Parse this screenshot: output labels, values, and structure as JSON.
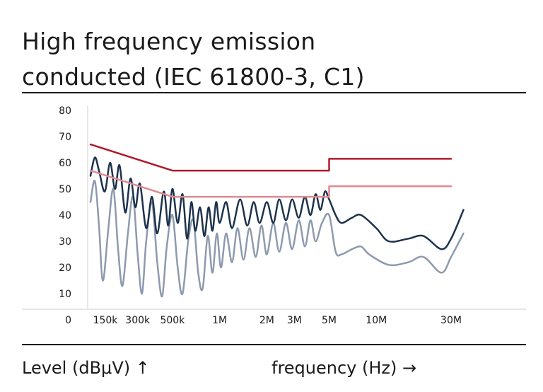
{
  "chart_data": {
    "type": "line",
    "title_line1": "High frequency emission",
    "title_line2": "conducted (IEC 61800-3, C1)",
    "xlabel": "frequency (Hz) →",
    "ylabel": "Level (dBμV) ↑",
    "x_scale": "log",
    "ylim": [
      0,
      80
    ],
    "y_ticks": [
      0,
      10,
      20,
      30,
      40,
      50,
      60,
      70,
      80
    ],
    "x_ticks": [
      {
        "label": "150k",
        "value": 150000
      },
      {
        "label": "300k",
        "value": 300000
      },
      {
        "label": "500k",
        "value": 500000
      },
      {
        "label": "1M",
        "value": 1000000
      },
      {
        "label": "2M",
        "value": 2000000
      },
      {
        "label": "3M",
        "value": 3000000
      },
      {
        "label": "5M",
        "value": 5000000
      },
      {
        "label": "10M",
        "value": 10000000
      },
      {
        "label": "30M",
        "value": 30000000
      }
    ],
    "grid": false,
    "series": [
      {
        "color": "#b0182b",
        "style": "step",
        "points": [
          [
            150000,
            67
          ],
          [
            500000,
            57
          ],
          [
            5000000,
            57
          ],
          [
            5000000,
            61.5
          ],
          [
            30000000,
            61.5
          ]
        ]
      },
      {
        "color": "#e08a90",
        "style": "step",
        "points": [
          [
            150000,
            57
          ],
          [
            500000,
            47
          ],
          [
            5000000,
            47
          ],
          [
            5000000,
            51
          ],
          [
            30000000,
            51
          ]
        ]
      },
      {
        "color": "#1d324c",
        "style": "oscillating",
        "points": [
          [
            150000,
            55
          ],
          [
            160000,
            62
          ],
          [
            170000,
            57
          ],
          [
            185000,
            49
          ],
          [
            200000,
            60
          ],
          [
            215000,
            50
          ],
          [
            230000,
            59
          ],
          [
            250000,
            41
          ],
          [
            270000,
            54
          ],
          [
            290000,
            43
          ],
          [
            310000,
            52
          ],
          [
            340000,
            35
          ],
          [
            370000,
            47
          ],
          [
            400000,
            33
          ],
          [
            440000,
            49
          ],
          [
            470000,
            36
          ],
          [
            500000,
            50
          ],
          [
            540000,
            37
          ],
          [
            580000,
            48
          ],
          [
            620000,
            31
          ],
          [
            660000,
            45
          ],
          [
            700000,
            34
          ],
          [
            750000,
            43
          ],
          [
            800000,
            32
          ],
          [
            850000,
            43
          ],
          [
            900000,
            34
          ],
          [
            950000,
            45
          ],
          [
            1000000,
            37
          ],
          [
            1100000,
            45
          ],
          [
            1200000,
            35
          ],
          [
            1350000,
            46
          ],
          [
            1500000,
            36
          ],
          [
            1650000,
            45
          ],
          [
            1800000,
            37
          ],
          [
            2000000,
            45
          ],
          [
            2200000,
            37
          ],
          [
            2400000,
            46
          ],
          [
            2650000,
            38
          ],
          [
            2900000,
            46
          ],
          [
            3200000,
            39
          ],
          [
            3500000,
            47
          ],
          [
            3800000,
            40
          ],
          [
            4100000,
            48
          ],
          [
            4400000,
            42
          ],
          [
            4700000,
            49
          ],
          [
            5000000,
            46
          ],
          [
            5500000,
            40
          ],
          [
            6000000,
            37
          ],
          [
            7000000,
            39
          ],
          [
            8000000,
            40
          ],
          [
            10000000,
            35
          ],
          [
            12000000,
            30
          ],
          [
            16000000,
            31
          ],
          [
            20000000,
            32
          ],
          [
            26000000,
            27
          ],
          [
            30000000,
            31
          ],
          [
            36000000,
            42
          ]
        ]
      },
      {
        "color": "#8d9aae",
        "style": "oscillating",
        "points": [
          [
            150000,
            45
          ],
          [
            160000,
            53
          ],
          [
            170000,
            36
          ],
          [
            180000,
            15
          ],
          [
            195000,
            35
          ],
          [
            210000,
            50
          ],
          [
            225000,
            27
          ],
          [
            240000,
            13
          ],
          [
            260000,
            33
          ],
          [
            280000,
            47
          ],
          [
            300000,
            25
          ],
          [
            320000,
            10
          ],
          [
            340000,
            30
          ],
          [
            370000,
            45
          ],
          [
            400000,
            22
          ],
          [
            430000,
            9
          ],
          [
            460000,
            28
          ],
          [
            500000,
            40
          ],
          [
            540000,
            20
          ],
          [
            580000,
            10
          ],
          [
            630000,
            30
          ],
          [
            680000,
            38
          ],
          [
            730000,
            18
          ],
          [
            780000,
            12
          ],
          [
            840000,
            32
          ],
          [
            900000,
            18
          ],
          [
            960000,
            33
          ],
          [
            1020000,
            20
          ],
          [
            1100000,
            33
          ],
          [
            1200000,
            22
          ],
          [
            1300000,
            35
          ],
          [
            1420000,
            23
          ],
          [
            1550000,
            35
          ],
          [
            1700000,
            24
          ],
          [
            1850000,
            36
          ],
          [
            2000000,
            25
          ],
          [
            2200000,
            37
          ],
          [
            2400000,
            26
          ],
          [
            2650000,
            37
          ],
          [
            2900000,
            27
          ],
          [
            3200000,
            38
          ],
          [
            3500000,
            28
          ],
          [
            3800000,
            38
          ],
          [
            4100000,
            30
          ],
          [
            4500000,
            37
          ],
          [
            5000000,
            40
          ],
          [
            5500000,
            26
          ],
          [
            6000000,
            25
          ],
          [
            7000000,
            27
          ],
          [
            8000000,
            28
          ],
          [
            9000000,
            25
          ],
          [
            12000000,
            21
          ],
          [
            16000000,
            22
          ],
          [
            20000000,
            24
          ],
          [
            26000000,
            18
          ],
          [
            30000000,
            24
          ],
          [
            36000000,
            33
          ]
        ]
      }
    ]
  }
}
